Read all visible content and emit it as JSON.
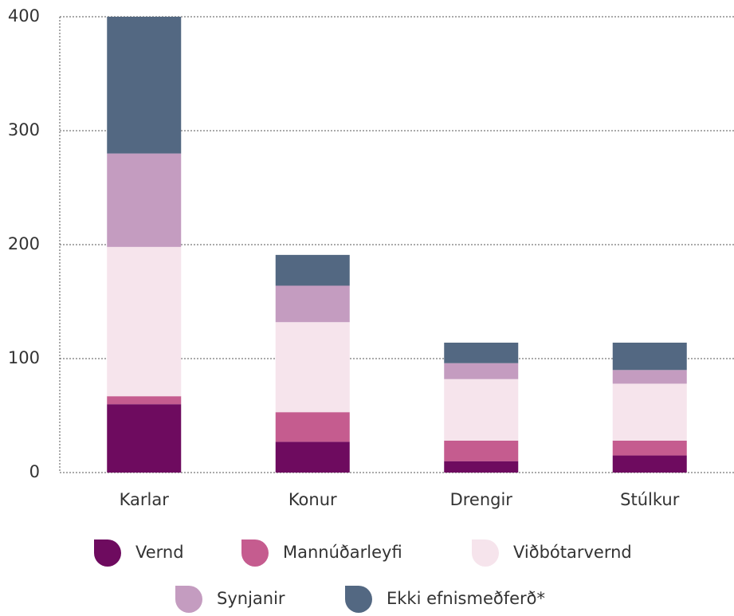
{
  "chart_data": {
    "type": "stacked_bar",
    "categories": [
      "Karlar",
      "Konur",
      "Drengir",
      "Stúlkur"
    ],
    "series": [
      {
        "name": "Vernd",
        "color": "#6e0b5f",
        "values": [
          60,
          27,
          10,
          15
        ]
      },
      {
        "name": "Mannúðarleyfi",
        "color": "#c55c8f",
        "values": [
          7,
          26,
          18,
          13
        ]
      },
      {
        "name": "Viðbótarvernd",
        "color": "#f6e4ec",
        "values": [
          131,
          79,
          54,
          50
        ]
      },
      {
        "name": "Synjanir",
        "color": "#c49cc0",
        "values": [
          82,
          32,
          14,
          12
        ]
      },
      {
        "name": "Ekki efnismeðferð*",
        "color": "#536882",
        "values": [
          120,
          27,
          18,
          24
        ]
      }
    ],
    "ylim": [
      0,
      400
    ],
    "yticks": [
      0,
      100,
      200,
      300,
      400
    ],
    "grid": true
  }
}
